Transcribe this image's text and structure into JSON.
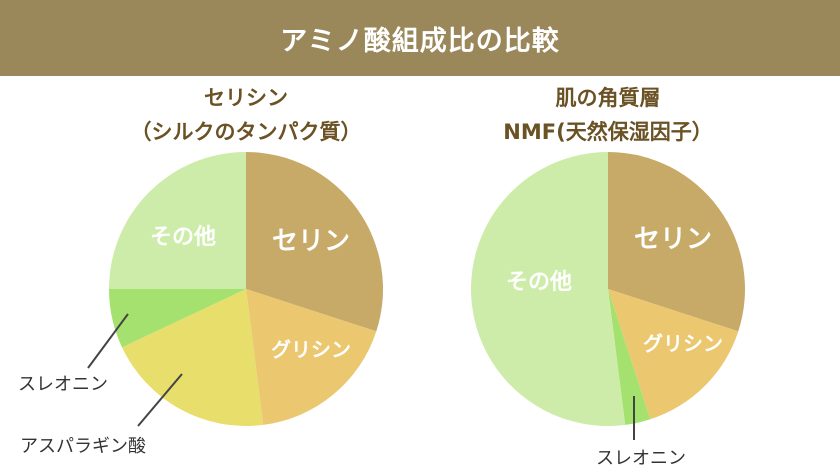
{
  "header": {
    "title": "アミノ酸組成比の比較"
  },
  "chart_data": [
    {
      "type": "pie",
      "title_lines": [
        "セリシン",
        "（シルクのタンパク質）"
      ],
      "slices": [
        {
          "label": "セリン",
          "value": 30,
          "color": "#c8aa68",
          "label_position": "inside"
        },
        {
          "label": "グリシン",
          "value": 18,
          "color": "#ebc76f",
          "label_position": "inside"
        },
        {
          "label": "アスパラギン酸",
          "value": 20,
          "color": "#e8de6c",
          "label_position": "outside"
        },
        {
          "label": "スレオニン",
          "value": 7,
          "color": "#a5e16f",
          "label_position": "outside"
        },
        {
          "label": "その他",
          "value": 25,
          "color": "#cdeca9",
          "label_position": "inside"
        }
      ]
    },
    {
      "type": "pie",
      "title_lines": [
        "肌の角質層",
        "NMF(天然保湿因子）"
      ],
      "slices": [
        {
          "label": "セリン",
          "value": 30,
          "color": "#c8aa68",
          "label_position": "inside"
        },
        {
          "label": "グリシン",
          "value": 15,
          "color": "#ebc76f",
          "label_position": "inside"
        },
        {
          "label": "スレオニン",
          "value": 3,
          "color": "#a5e16f",
          "label_position": "outside"
        },
        {
          "label": "その他",
          "value": 52,
          "color": "#cdeca9",
          "label_position": "inside"
        }
      ]
    }
  ]
}
